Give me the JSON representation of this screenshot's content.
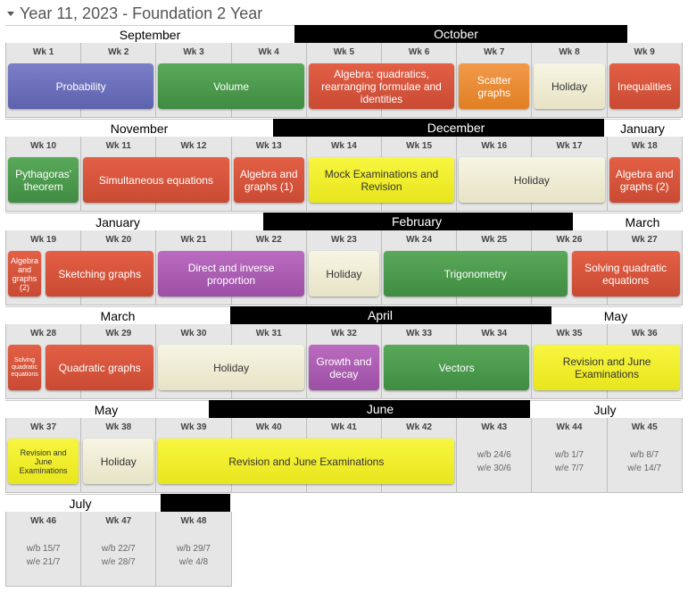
{
  "header": {
    "title": "Year 11, 2023 - Foundation 2 Year"
  },
  "months": [
    {
      "label": "September",
      "style": "light"
    },
    {
      "label": "October",
      "style": "dark"
    },
    {
      "label": "November",
      "style": "light"
    },
    {
      "label": "December",
      "style": "dark"
    },
    {
      "label": "January",
      "style": "light"
    },
    {
      "label": "January",
      "style": "light"
    },
    {
      "label": "February",
      "style": "dark"
    },
    {
      "label": "March",
      "style": "light"
    },
    {
      "label": "March",
      "style": "light"
    },
    {
      "label": "April",
      "style": "dark"
    },
    {
      "label": "May",
      "style": "light"
    },
    {
      "label": "May",
      "style": "light"
    },
    {
      "label": "June",
      "style": "dark"
    },
    {
      "label": "July",
      "style": "light"
    },
    {
      "label": "July",
      "style": "light"
    },
    {
      "label": "",
      "style": "dark"
    }
  ],
  "weeks": [
    {
      "label": "Wk 1"
    },
    {
      "label": "Wk 2"
    },
    {
      "label": "Wk 3"
    },
    {
      "label": "Wk 4"
    },
    {
      "label": "Wk 5"
    },
    {
      "label": "Wk 6"
    },
    {
      "label": "Wk 7"
    },
    {
      "label": "Wk 8"
    },
    {
      "label": "Wk 9"
    },
    {
      "label": "Wk 10"
    },
    {
      "label": "Wk 11"
    },
    {
      "label": "Wk 12"
    },
    {
      "label": "Wk 13"
    },
    {
      "label": "Wk 14"
    },
    {
      "label": "Wk 15"
    },
    {
      "label": "Wk 16"
    },
    {
      "label": "Wk 17"
    },
    {
      "label": "Wk 18"
    },
    {
      "label": "Wk 19"
    },
    {
      "label": "Wk 20"
    },
    {
      "label": "Wk 21"
    },
    {
      "label": "Wk 22"
    },
    {
      "label": "Wk 23"
    },
    {
      "label": "Wk 24"
    },
    {
      "label": "Wk 25"
    },
    {
      "label": "Wk 26"
    },
    {
      "label": "Wk 27"
    },
    {
      "label": "Wk 28"
    },
    {
      "label": "Wk 29"
    },
    {
      "label": "Wk 30"
    },
    {
      "label": "Wk 31"
    },
    {
      "label": "Wk 32"
    },
    {
      "label": "Wk 33"
    },
    {
      "label": "Wk 34"
    },
    {
      "label": "Wk 35"
    },
    {
      "label": "Wk 36"
    },
    {
      "label": "Wk 37"
    },
    {
      "label": "Wk 38"
    },
    {
      "label": "Wk 39"
    },
    {
      "label": "Wk 40"
    },
    {
      "label": "Wk 41"
    },
    {
      "label": "Wk 42"
    },
    {
      "label": "Wk 43",
      "wb": "w/b 24/6",
      "we": "w/e 30/6"
    },
    {
      "label": "Wk 44",
      "wb": "w/b 1/7",
      "we": "w/e 7/7"
    },
    {
      "label": "Wk 45",
      "wb": "w/b 8/7",
      "we": "w/e 14/7"
    },
    {
      "label": "Wk 46",
      "wb": "w/b 15/7",
      "we": "w/e 21/7"
    },
    {
      "label": "Wk 47",
      "wb": "w/b 22/7",
      "we": "w/e 28/7"
    },
    {
      "label": "Wk 48",
      "wb": "w/b 29/7",
      "we": "w/e 4/8"
    }
  ],
  "topics": [
    {
      "lines": [
        "Probability"
      ],
      "kind": "purple"
    },
    {
      "lines": [
        "Volume"
      ],
      "kind": "green"
    },
    {
      "lines": [
        "Algebra: quadratics,",
        "rearranging formulae and",
        "identities"
      ],
      "kind": "red"
    },
    {
      "lines": [
        "Scatter",
        "graphs"
      ],
      "kind": "orange"
    },
    {
      "lines": [
        "Holiday"
      ],
      "kind": "holiday"
    },
    {
      "lines": [
        "Inequalities"
      ],
      "kind": "red"
    },
    {
      "lines": [
        "Pythagoras'",
        "theorem"
      ],
      "kind": "green"
    },
    {
      "lines": [
        "Simultaneous equations"
      ],
      "kind": "red"
    },
    {
      "lines": [
        "Algebra and",
        "graphs (1)"
      ],
      "kind": "red"
    },
    {
      "lines": [
        "Mock Examinations and",
        "Revision"
      ],
      "kind": "yellow"
    },
    {
      "lines": [
        "Holiday"
      ],
      "kind": "holiday"
    },
    {
      "lines": [
        "Algebra and",
        "graphs (2)"
      ],
      "kind": "red"
    },
    {
      "lines": [
        "Algebra",
        "and",
        "graphs",
        "(2)"
      ],
      "kind": "red"
    },
    {
      "lines": [
        "Sketching graphs"
      ],
      "kind": "red"
    },
    {
      "lines": [
        "Direct and inverse",
        "proportion"
      ],
      "kind": "magenta"
    },
    {
      "lines": [
        "Holiday"
      ],
      "kind": "holiday"
    },
    {
      "lines": [
        "Trigonometry"
      ],
      "kind": "green"
    },
    {
      "lines": [
        "Solving quadratic",
        "equations"
      ],
      "kind": "red"
    },
    {
      "lines": [
        "Solving",
        "quadratic",
        "equations"
      ],
      "kind": "red"
    },
    {
      "lines": [
        "Quadratic graphs"
      ],
      "kind": "red"
    },
    {
      "lines": [
        "Holiday"
      ],
      "kind": "holiday"
    },
    {
      "lines": [
        "Growth and",
        "decay"
      ],
      "kind": "magenta"
    },
    {
      "lines": [
        "Vectors"
      ],
      "kind": "green"
    },
    {
      "lines": [
        "Revision and June",
        "Examinations"
      ],
      "kind": "yellow"
    },
    {
      "lines": [
        "Revision and",
        "June",
        "Examinations"
      ],
      "kind": "yellow"
    },
    {
      "lines": [
        "Holiday"
      ],
      "kind": "holiday"
    },
    {
      "lines": [
        "Revision and June Examinations"
      ],
      "kind": "yellow"
    }
  ]
}
